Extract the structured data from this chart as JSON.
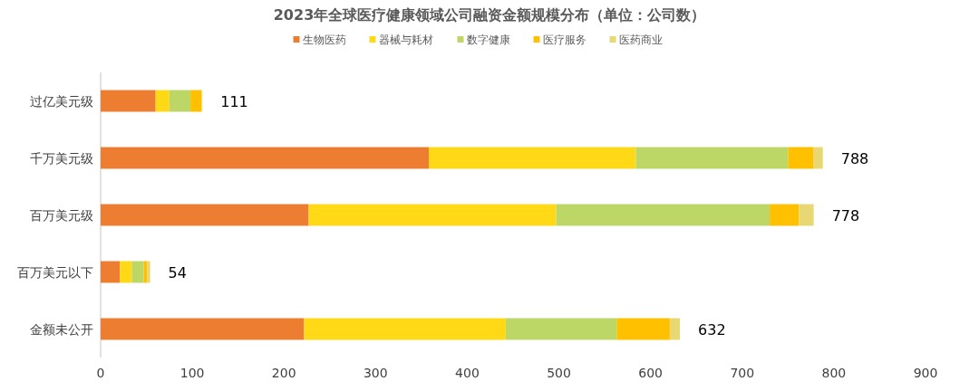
{
  "chart_data": {
    "type": "bar",
    "orientation": "horizontal",
    "stacked": true,
    "title": "2023年全球医疗健康领域公司融资金额规模分布（单位：公司数）",
    "categories": [
      "过亿美元级",
      "千万美元级",
      "百万美元级",
      "百万美元以下",
      "金额未公开"
    ],
    "series": [
      {
        "name": "生物医药",
        "color": "#ed7d31",
        "values": [
          60,
          358,
          227,
          21,
          222
        ]
      },
      {
        "name": "器械与耗材",
        "color": "#ffd916",
        "values": [
          15,
          226,
          270,
          13,
          220
        ]
      },
      {
        "name": "数字健康",
        "color": "#bdd766",
        "values": [
          23,
          166,
          233,
          13,
          121
        ]
      },
      {
        "name": "医疗服务",
        "color": "#ffc000",
        "values": [
          12,
          28,
          32,
          4,
          58
        ]
      },
      {
        "name": "医药商业",
        "color": "#e8d874",
        "values": [
          1,
          10,
          16,
          3,
          11
        ]
      }
    ],
    "totals": [
      "111",
      "788",
      "778",
      "54",
      "632"
    ],
    "xlim": [
      0,
      900
    ],
    "xticks": [
      0,
      100,
      200,
      300,
      400,
      500,
      600,
      700,
      800,
      900
    ],
    "grid": false,
    "legend": "top"
  }
}
